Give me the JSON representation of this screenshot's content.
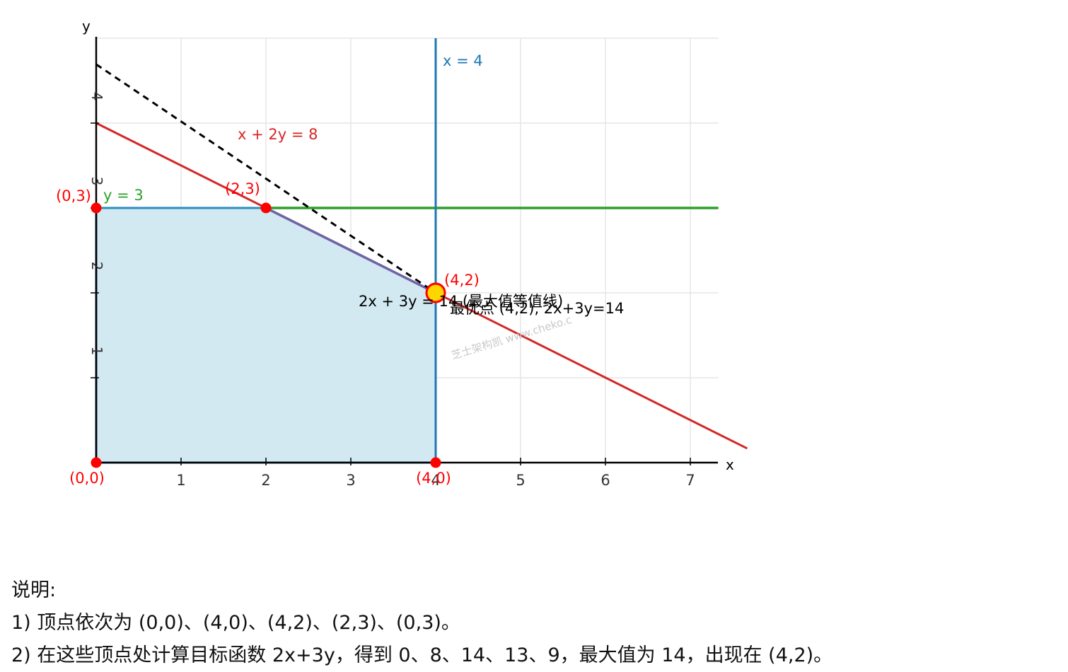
{
  "chart_data": {
    "type": "line",
    "xlabel": "x",
    "ylabel": "y",
    "xlim": [
      0,
      7.3
    ],
    "ylim": [
      0,
      5
    ],
    "x_ticks": [
      1,
      2,
      3,
      4,
      5,
      6,
      7
    ],
    "y_ticks": [
      1,
      2,
      3,
      4
    ],
    "grid": true,
    "feasible_region": {
      "vertices": [
        [
          0,
          0
        ],
        [
          4,
          0
        ],
        [
          4,
          2
        ],
        [
          2,
          3
        ],
        [
          0,
          3
        ]
      ],
      "fill_color": "#d3e9f2"
    },
    "constraint_lines": [
      {
        "label": "x + 2y = 8",
        "color": "#d62728",
        "points": [
          [
            0,
            4
          ],
          [
            7.67,
            0.167
          ]
        ]
      },
      {
        "label": "y = 3",
        "color": "#2ca02c",
        "points": [
          [
            2,
            3
          ],
          [
            7.33,
            3
          ]
        ]
      },
      {
        "label": "x = 4",
        "color": "#1f77b4",
        "points": [
          [
            4,
            0
          ],
          [
            4,
            5
          ]
        ]
      }
    ],
    "objective_line": {
      "label": "2x + 3y = 14 (最大值等值线)",
      "color": "#000000",
      "style": "dashed",
      "points": [
        [
          0,
          4.667
        ],
        [
          4,
          2
        ]
      ]
    },
    "vertex_points": [
      {
        "label": "(0,0)",
        "x": 0,
        "y": 0
      },
      {
        "label": "(4,0)",
        "x": 4,
        "y": 0
      },
      {
        "label": "(2,3)",
        "x": 2,
        "y": 3
      },
      {
        "label": "(0,3)",
        "x": 0,
        "y": 3
      },
      {
        "label": "(4,2)",
        "x": 4,
        "y": 2
      }
    ],
    "optimum": {
      "x": 4,
      "y": 2,
      "label": "最优点 (4,2), 2x+3y=14",
      "fill": "#ffd700",
      "stroke": "#ff0000"
    },
    "vertex_color": "#ff0000",
    "watermark": "芝士架构凯 www.cheko.c"
  },
  "notes": {
    "title": "说明:",
    "line1": "1) 顶点依次为 (0,0)、(4,0)、(4,2)、(2,3)、(0,3)。",
    "line2": "2) 在这些顶点处计算目标函数 2x+3y，得到 0、8、14、13、9，最大值为 14，出现在 (4,2)。"
  }
}
